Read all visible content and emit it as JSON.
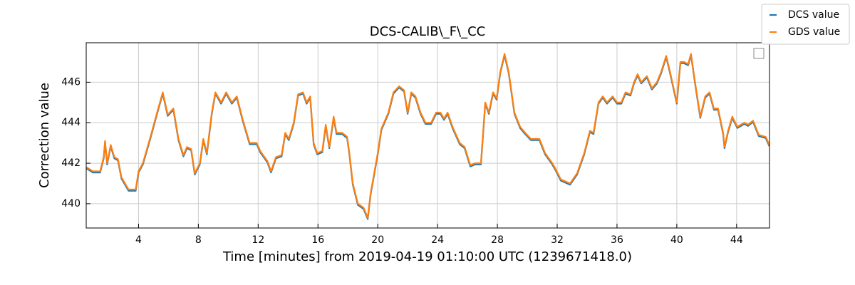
{
  "chart_data": {
    "type": "line",
    "title": "DCS-CALIB\\_F\\_CC",
    "xlabel": "Time [minutes] from 2019-04-19 01:10:00 UTC (1239671418.0)",
    "ylabel": "Correction value",
    "xlim": [
      0.5,
      46.2
    ],
    "ylim": [
      438.8,
      447.95
    ],
    "xticks": [
      4,
      8,
      12,
      16,
      20,
      24,
      28,
      32,
      36,
      40,
      44
    ],
    "yticks": [
      440,
      442,
      444,
      446
    ],
    "grid": true,
    "legend": "outside upper right",
    "x": [
      0.52,
      0.95,
      1.43,
      1.67,
      1.76,
      1.9,
      2.14,
      2.38,
      2.62,
      2.86,
      3.33,
      3.81,
      4.0,
      4.29,
      4.76,
      5.24,
      5.62,
      5.95,
      6.33,
      6.67,
      7.0,
      7.24,
      7.52,
      7.76,
      8.1,
      8.33,
      8.57,
      8.9,
      9.14,
      9.52,
      9.86,
      10.24,
      10.57,
      10.95,
      11.43,
      11.9,
      12.14,
      12.62,
      12.86,
      13.19,
      13.57,
      13.81,
      14.05,
      14.38,
      14.67,
      15.0,
      15.24,
      15.48,
      15.71,
      15.95,
      16.29,
      16.52,
      16.76,
      17.05,
      17.24,
      17.62,
      17.95,
      18.1,
      18.33,
      18.67,
      19.05,
      19.33,
      19.52,
      20.0,
      20.24,
      20.71,
      21.05,
      21.43,
      21.76,
      22.0,
      22.24,
      22.52,
      22.86,
      23.19,
      23.57,
      23.9,
      24.19,
      24.43,
      24.67,
      25.0,
      25.48,
      25.81,
      26.19,
      26.52,
      26.9,
      27.19,
      27.43,
      27.71,
      27.95,
      28.19,
      28.48,
      28.76,
      29.14,
      29.52,
      29.86,
      30.24,
      30.81,
      31.19,
      31.67,
      31.9,
      32.24,
      32.86,
      33.33,
      33.81,
      34.19,
      34.43,
      34.76,
      35.05,
      35.33,
      35.71,
      36.0,
      36.29,
      36.57,
      36.9,
      37.14,
      37.38,
      37.62,
      38.0,
      38.33,
      38.67,
      38.95,
      39.29,
      39.52,
      39.76,
      40.0,
      40.24,
      40.48,
      40.76,
      40.95,
      41.24,
      41.57,
      41.9,
      42.19,
      42.48,
      42.76,
      43.1,
      43.19,
      43.43,
      43.71,
      44.05,
      44.52,
      44.76,
      45.1,
      45.48,
      45.95,
      46.19
    ],
    "series": [
      {
        "name": "DCS value",
        "color": "#1f77b4",
        "values": [
          441.74,
          441.54,
          441.54,
          442.24,
          443.04,
          441.94,
          442.84,
          442.24,
          442.14,
          441.24,
          440.64,
          440.64,
          441.54,
          441.94,
          443.14,
          444.44,
          445.44,
          444.34,
          444.64,
          443.14,
          442.34,
          442.74,
          442.64,
          441.44,
          441.94,
          443.14,
          442.44,
          444.44,
          445.44,
          444.94,
          445.44,
          444.94,
          445.24,
          444.14,
          442.94,
          442.94,
          442.54,
          442.04,
          441.54,
          442.24,
          442.34,
          443.44,
          443.14,
          443.94,
          445.34,
          445.44,
          444.94,
          445.24,
          442.94,
          442.44,
          442.54,
          443.84,
          442.74,
          444.24,
          443.44,
          443.44,
          443.24,
          442.44,
          440.94,
          439.94,
          439.74,
          439.24,
          440.44,
          442.44,
          443.64,
          444.44,
          445.44,
          445.74,
          445.54,
          444.44,
          445.44,
          445.24,
          444.44,
          443.94,
          443.94,
          444.44,
          444.44,
          444.14,
          444.44,
          443.74,
          442.94,
          442.74,
          441.84,
          441.94,
          441.94,
          444.94,
          444.44,
          445.44,
          445.14,
          446.44,
          447.34,
          446.44,
          444.44,
          443.74,
          443.44,
          443.14,
          443.14,
          442.44,
          441.94,
          441.64,
          441.14,
          440.94,
          441.44,
          442.44,
          443.54,
          443.44,
          444.94,
          445.24,
          444.94,
          445.24,
          444.94,
          444.94,
          445.44,
          445.34,
          445.94,
          446.34,
          445.94,
          446.24,
          445.64,
          445.94,
          446.44,
          447.24,
          446.54,
          445.74,
          444.94,
          446.94,
          446.94,
          446.84,
          447.34,
          445.84,
          444.24,
          445.24,
          445.44,
          444.64,
          444.64,
          443.44,
          442.74,
          443.54,
          444.24,
          443.74,
          443.94,
          443.84,
          444.04,
          443.34,
          443.24,
          442.84
        ]
      },
      {
        "name": "GDS value",
        "color": "#ff7f0e",
        "values": [
          441.8,
          441.6,
          441.6,
          442.3,
          443.1,
          442.0,
          442.9,
          442.3,
          442.2,
          441.3,
          440.7,
          440.7,
          441.6,
          442.0,
          443.2,
          444.5,
          445.5,
          444.4,
          444.7,
          443.2,
          442.4,
          442.8,
          442.7,
          441.5,
          442.0,
          443.2,
          442.5,
          444.5,
          445.5,
          445.0,
          445.5,
          445.0,
          445.3,
          444.2,
          443.0,
          443.0,
          442.6,
          442.1,
          441.6,
          442.3,
          442.4,
          443.5,
          443.2,
          444.0,
          445.4,
          445.5,
          445.0,
          445.3,
          443.0,
          442.5,
          442.6,
          443.9,
          442.8,
          444.3,
          443.5,
          443.5,
          443.3,
          442.5,
          441.0,
          440.0,
          439.8,
          439.3,
          440.5,
          442.5,
          443.7,
          444.5,
          445.5,
          445.8,
          445.6,
          444.5,
          445.5,
          445.3,
          444.5,
          444.0,
          444.0,
          444.5,
          444.5,
          444.2,
          444.5,
          443.8,
          443.0,
          442.8,
          441.9,
          442.0,
          442.0,
          445.0,
          444.5,
          445.5,
          445.2,
          446.5,
          447.4,
          446.5,
          444.5,
          443.8,
          443.5,
          443.2,
          443.2,
          442.5,
          442.0,
          441.7,
          441.2,
          441.0,
          441.5,
          442.5,
          443.6,
          443.5,
          445.0,
          445.3,
          445.0,
          445.3,
          445.0,
          445.0,
          445.5,
          445.4,
          446.0,
          446.4,
          446.0,
          446.3,
          445.7,
          446.0,
          446.5,
          447.3,
          446.6,
          445.8,
          445.0,
          447.0,
          447.0,
          446.9,
          447.4,
          445.9,
          444.3,
          445.3,
          445.5,
          444.7,
          444.7,
          443.5,
          442.8,
          443.6,
          444.3,
          443.8,
          444.0,
          443.9,
          444.1,
          443.4,
          443.3,
          442.9
        ]
      }
    ]
  }
}
